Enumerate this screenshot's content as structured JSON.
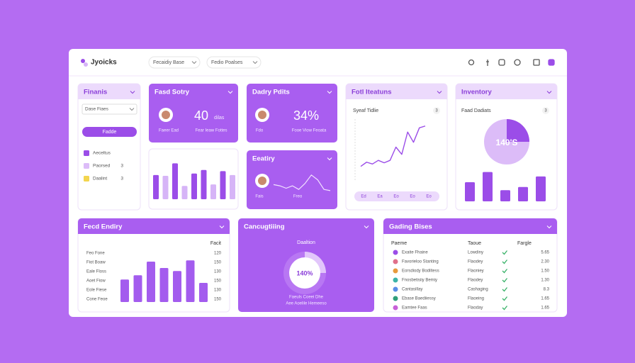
{
  "header": {
    "logo": "Jyoicks",
    "menus": [
      "Fecaidiy Base",
      "Fedio Poalses"
    ]
  },
  "panels": {
    "finance": {
      "title": "Finanis",
      "select": "Dase Fiaes",
      "button": "Fadde",
      "legend": [
        {
          "label": "Aeceltus",
          "color": "#9b4de8"
        },
        {
          "label": "Paorsed",
          "value": "3",
          "color": "#dcbcf8"
        },
        {
          "label": "Daalint",
          "value": "3",
          "color": "#f3d54e"
        }
      ]
    },
    "stat1": {
      "title": "Fasd Sotry",
      "value": "40",
      "unit": "dilas",
      "notes": [
        "Faeer Ead",
        "Fear Ieaw Fottes"
      ]
    },
    "bars1": {
      "ylim": [
        0,
        100
      ],
      "values": [
        62,
        60,
        92,
        34,
        66,
        75,
        38,
        72,
        62
      ]
    },
    "stat2": {
      "title": "Dadry Pdits",
      "value": "34%",
      "notes": [
        "Fdo",
        "Fooe Viow Feoata"
      ]
    },
    "activity": {
      "title": "Eeatiry",
      "notes": [
        "Fais",
        "Freo"
      ],
      "ylim": [
        0,
        100
      ],
      "values": [
        40,
        35,
        25,
        35,
        20,
        45,
        80,
        60,
        20,
        15
      ]
    },
    "features": {
      "title": "Fotl Iteatuns",
      "subtitle": "Syeaf Tidlie",
      "badge": "3",
      "ylim": [
        0,
        100
      ],
      "values": [
        18,
        25,
        22,
        28,
        24,
        28,
        50,
        38,
        75,
        58,
        82,
        85
      ],
      "labels": [
        "Ed",
        "Ea",
        "Eo",
        "Eo",
        "Eo"
      ]
    },
    "inventory": {
      "title": "Inventory",
      "subtitle": "Faad Dadiats",
      "badge": "3",
      "pie": {
        "value": 25,
        "label": "140'S"
      },
      "ylim": [
        0,
        100
      ],
      "values": [
        60,
        92,
        35,
        45,
        78
      ]
    },
    "ending": {
      "title": "Fecd Endiry",
      "column": "Facit",
      "rows": [
        {
          "label": "Feo Fone",
          "value": "120"
        },
        {
          "label": "Fiot Boaw",
          "value": "150"
        },
        {
          "label": "Eale Floss",
          "value": "130"
        },
        {
          "label": "Aoet Fiow",
          "value": "150"
        },
        {
          "label": "Eole Fiese",
          "value": "130"
        },
        {
          "label": "Cone Feoe",
          "value": "150"
        }
      ],
      "ylim": [
        0,
        100
      ],
      "values": [
        53,
        63,
        95,
        80,
        73,
        98,
        45
      ]
    },
    "campaign": {
      "title": "Cancugtiiing",
      "subtitle": "Daaltion",
      "donut": {
        "value": 25,
        "label": "140%"
      },
      "notes": [
        "Faeuls Coeei Dhe",
        "Aee Aoelile Hemeeso"
      ]
    },
    "table": {
      "title": "Gading Bises",
      "columns": [
        "Paeme",
        "Taoue",
        "Fargle"
      ],
      "rows": [
        [
          "Exaite Fhaine",
          "Lowdiny",
          "5.65"
        ],
        [
          "Favorieloo Stanting",
          "Flaodey",
          "2.30"
        ],
        [
          "Eorsdiody Bodiltess",
          "Flaoniey",
          "1.50"
        ],
        [
          "Fnosbetisiiy Bemiy",
          "Flaodey",
          "1.30"
        ],
        [
          "Cantasillay",
          "Cashaging",
          "8.3"
        ],
        [
          "Ebase Baediiessy",
          "Flaoeing",
          "1.65"
        ],
        [
          "Eamtee Faas",
          "Flaoday",
          "1.65"
        ]
      ]
    }
  }
}
